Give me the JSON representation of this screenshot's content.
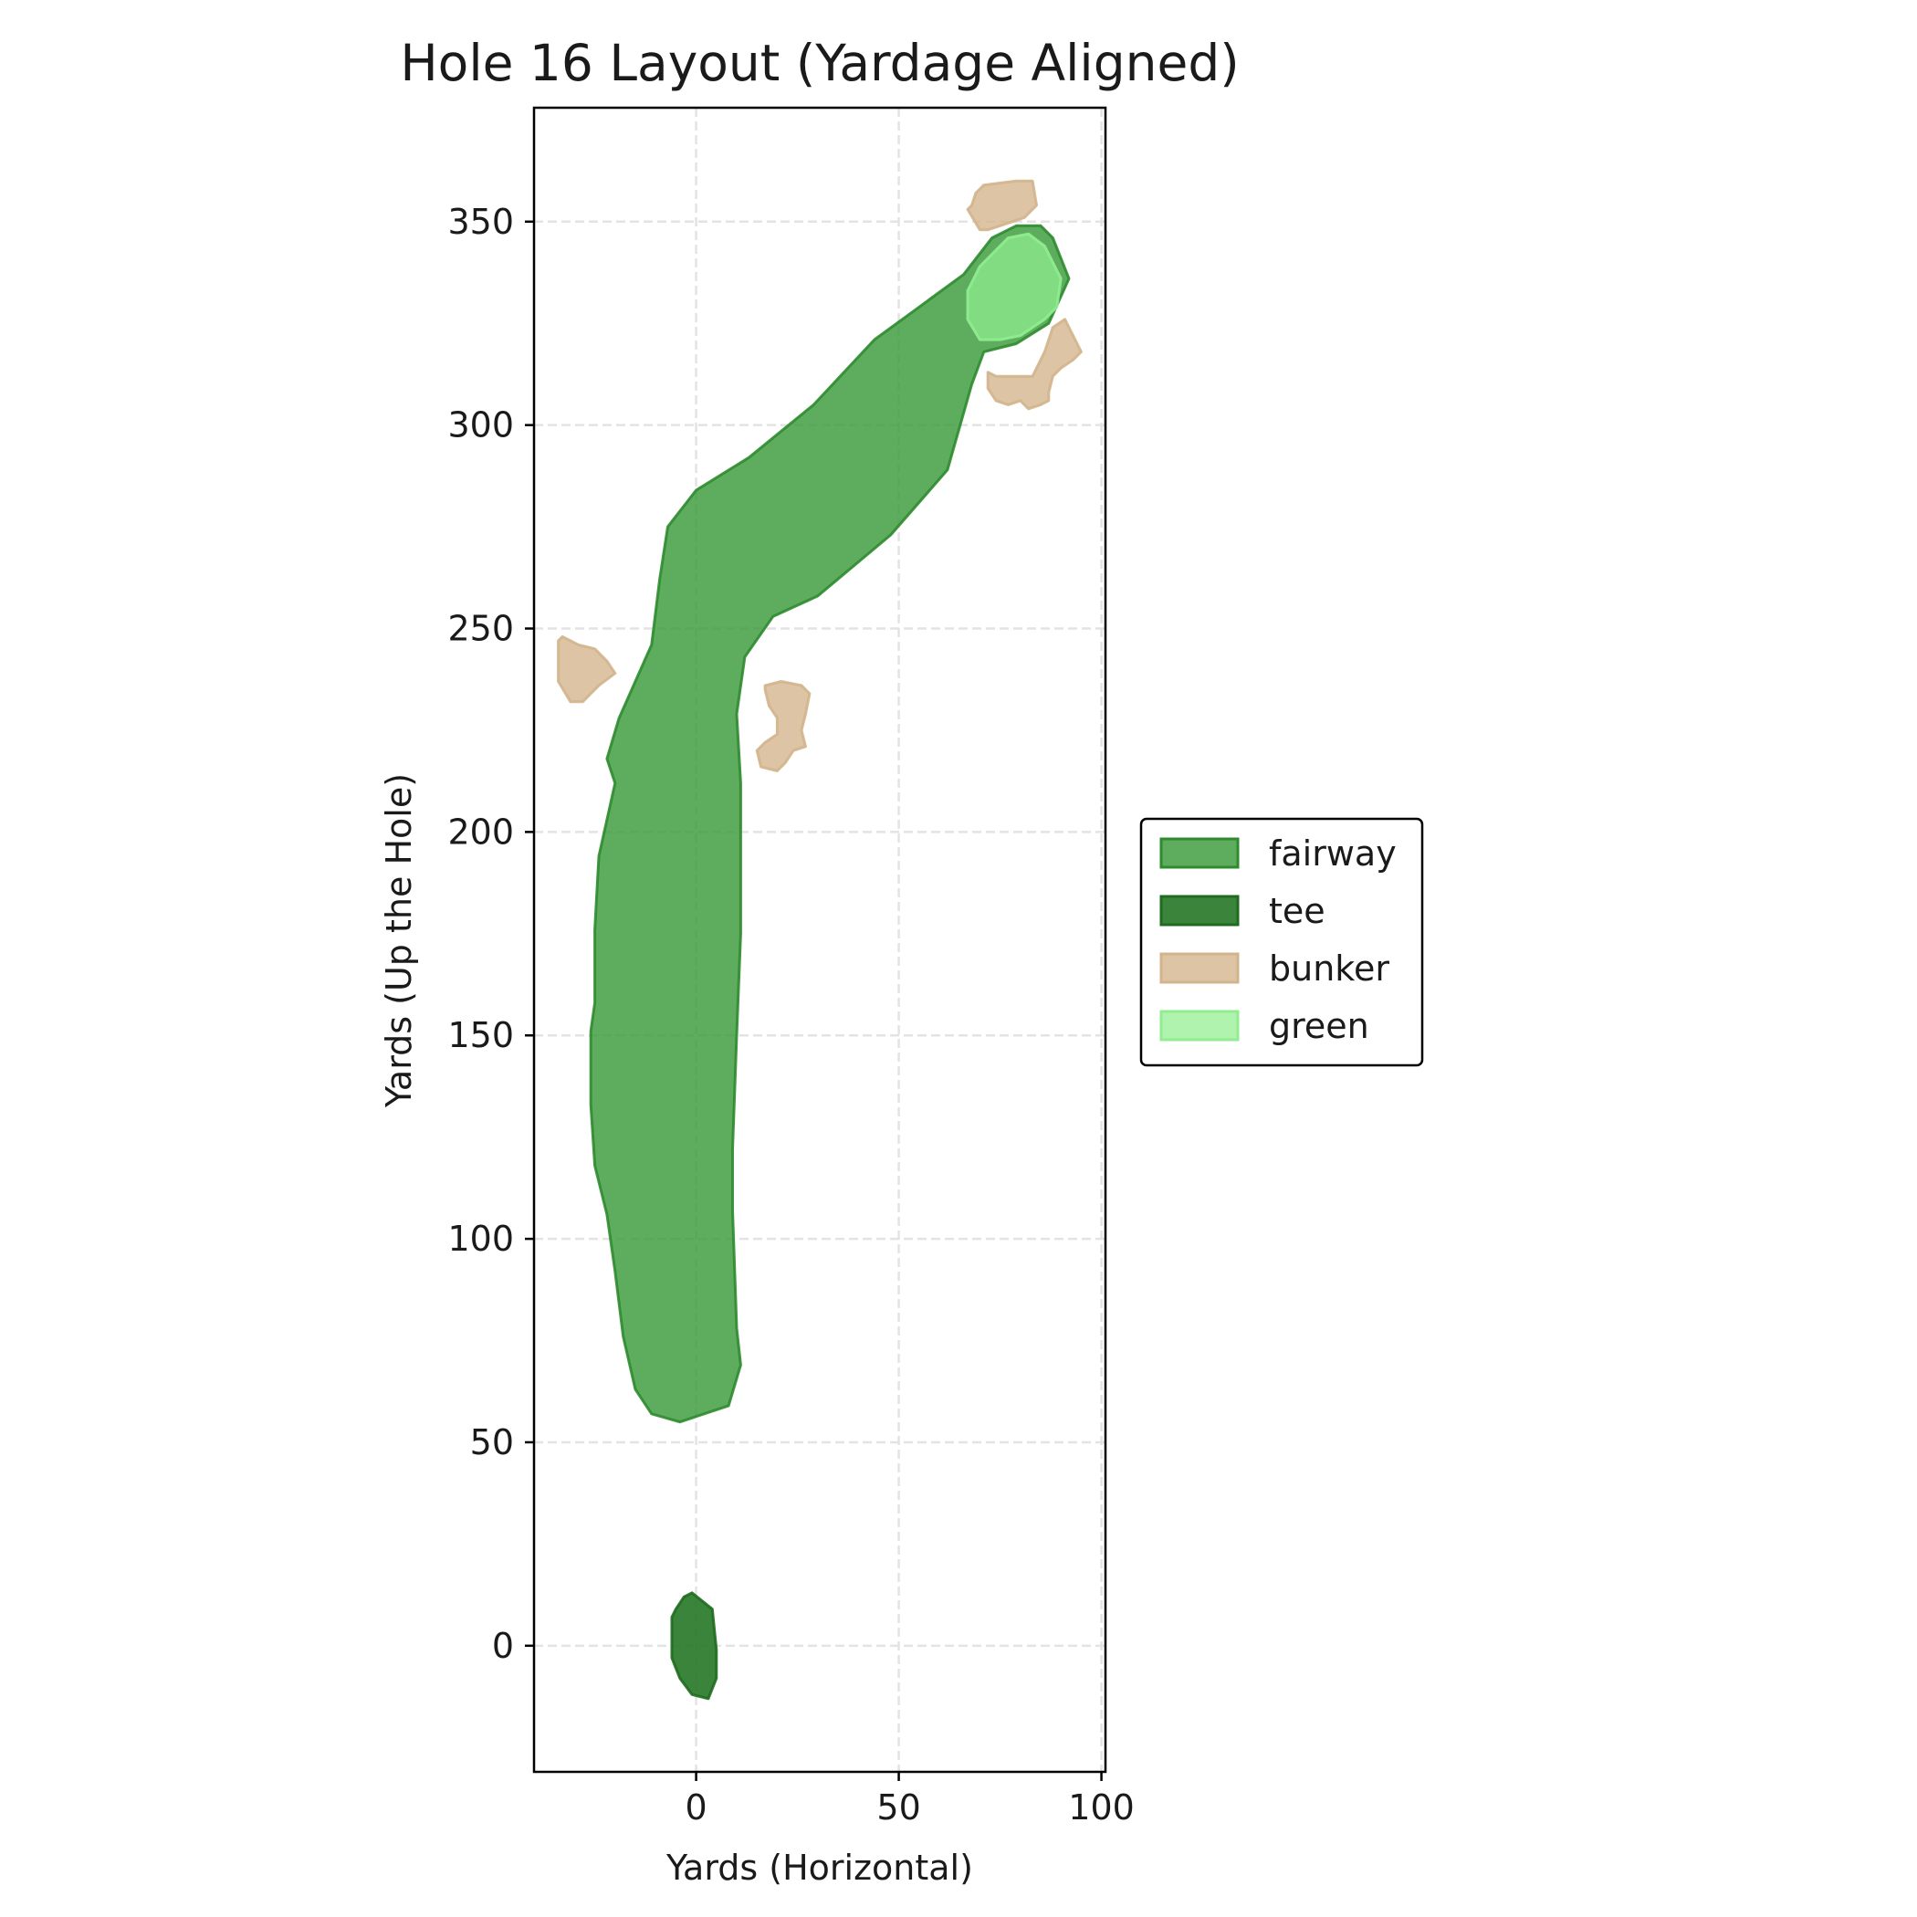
{
  "chart_data": {
    "type": "area",
    "title": "Hole 16 Layout (Yardage Aligned)",
    "xlabel": "Yards (Horizontal)",
    "ylabel": "Yards (Up the Hole)",
    "xlim": [
      -40,
      101
    ],
    "ylim": [
      -31,
      378
    ],
    "xticks": [
      0,
      50,
      100
    ],
    "yticks": [
      0,
      50,
      100,
      150,
      200,
      250,
      300,
      350
    ],
    "grid": true,
    "legend": {
      "position": "right",
      "entries": [
        {
          "label": "fairway",
          "fill": "#3a9a3a",
          "edge": "#2e8b2e"
        },
        {
          "label": "tee",
          "fill": "#2a7a2a",
          "edge": "#1f6b1f"
        },
        {
          "label": "bunker",
          "fill": "#d2b48c",
          "edge": "#d2b48c"
        },
        {
          "label": "green",
          "fill": "#90ee90",
          "edge": "#90ee90"
        }
      ]
    },
    "features": [
      {
        "type": "fairway",
        "points": [
          [
            -4,
            55
          ],
          [
            8,
            59
          ],
          [
            11,
            69
          ],
          [
            10,
            78
          ],
          [
            9,
            107
          ],
          [
            9,
            122
          ],
          [
            10,
            150
          ],
          [
            11,
            175
          ],
          [
            11,
            212
          ],
          [
            10,
            229
          ],
          [
            12,
            243
          ],
          [
            19,
            253
          ],
          [
            30,
            258
          ],
          [
            48,
            273
          ],
          [
            62,
            289
          ],
          [
            68,
            310
          ],
          [
            71,
            318
          ],
          [
            79,
            320
          ],
          [
            87,
            325
          ],
          [
            92,
            336
          ],
          [
            88,
            346
          ],
          [
            85,
            349
          ],
          [
            79,
            349
          ],
          [
            73,
            346
          ],
          [
            66,
            337
          ],
          [
            55,
            329
          ],
          [
            44,
            321
          ],
          [
            29,
            305
          ],
          [
            13,
            292
          ],
          [
            0,
            284
          ],
          [
            -7,
            275
          ],
          [
            -9,
            262
          ],
          [
            -11,
            246
          ],
          [
            -19,
            228
          ],
          [
            -22,
            218
          ],
          [
            -20,
            212
          ],
          [
            -24,
            194
          ],
          [
            -25,
            176
          ],
          [
            -25,
            158
          ],
          [
            -26,
            151
          ],
          [
            -26,
            133
          ],
          [
            -25,
            118
          ],
          [
            -22,
            106
          ],
          [
            -20,
            92
          ],
          [
            -18,
            76
          ],
          [
            -15,
            63
          ],
          [
            -11,
            57
          ]
        ]
      },
      {
        "type": "tee",
        "points": [
          [
            -5,
            9
          ],
          [
            -3,
            12
          ],
          [
            -1,
            13
          ],
          [
            4,
            9
          ],
          [
            5,
            -1
          ],
          [
            5,
            -8
          ],
          [
            3,
            -13
          ],
          [
            -1,
            -12
          ],
          [
            -4,
            -8
          ],
          [
            -6,
            -3
          ],
          [
            -6,
            7
          ]
        ]
      },
      {
        "type": "bunker",
        "points": [
          [
            -33,
            248
          ],
          [
            -29,
            246
          ],
          [
            -25,
            245
          ],
          [
            -22,
            242
          ],
          [
            -20,
            239
          ],
          [
            -24,
            236
          ],
          [
            -28,
            232
          ],
          [
            -31,
            232
          ],
          [
            -34,
            237
          ],
          [
            -34,
            247
          ]
        ]
      },
      {
        "type": "bunker",
        "points": [
          [
            17,
            236
          ],
          [
            21,
            237
          ],
          [
            26,
            236
          ],
          [
            28,
            234
          ],
          [
            27,
            229
          ],
          [
            26,
            225
          ],
          [
            27,
            221
          ],
          [
            24,
            220
          ],
          [
            22,
            217
          ],
          [
            20,
            215
          ],
          [
            16,
            216
          ],
          [
            15,
            220
          ],
          [
            17,
            222
          ],
          [
            20,
            224
          ],
          [
            20,
            228
          ],
          [
            18,
            231
          ],
          [
            17,
            235
          ]
        ]
      },
      {
        "type": "bunker",
        "points": [
          [
            68,
            354
          ],
          [
            69,
            357
          ],
          [
            71,
            359
          ],
          [
            79,
            360
          ],
          [
            83,
            360
          ],
          [
            84,
            354
          ],
          [
            81,
            351
          ],
          [
            75,
            349
          ],
          [
            72,
            348
          ],
          [
            70,
            348
          ],
          [
            67,
            353
          ]
        ]
      },
      {
        "type": "bunker",
        "points": [
          [
            72,
            313
          ],
          [
            74,
            312
          ],
          [
            83,
            312
          ],
          [
            86,
            318
          ],
          [
            88,
            324
          ],
          [
            91,
            326
          ],
          [
            95,
            318
          ],
          [
            93,
            316
          ],
          [
            90,
            314
          ],
          [
            88,
            312
          ],
          [
            87,
            308
          ],
          [
            87,
            306
          ],
          [
            85,
            305
          ],
          [
            82,
            304
          ],
          [
            80,
            306
          ],
          [
            77,
            305
          ],
          [
            74,
            306
          ],
          [
            72,
            309
          ]
        ]
      },
      {
        "type": "green",
        "points": [
          [
            67,
            333
          ],
          [
            70,
            339
          ],
          [
            77,
            346
          ],
          [
            82,
            347
          ],
          [
            86,
            344
          ],
          [
            90,
            336
          ],
          [
            89,
            329
          ],
          [
            86,
            326
          ],
          [
            80,
            322
          ],
          [
            75,
            321
          ],
          [
            70,
            321
          ],
          [
            67,
            326
          ]
        ]
      }
    ]
  }
}
